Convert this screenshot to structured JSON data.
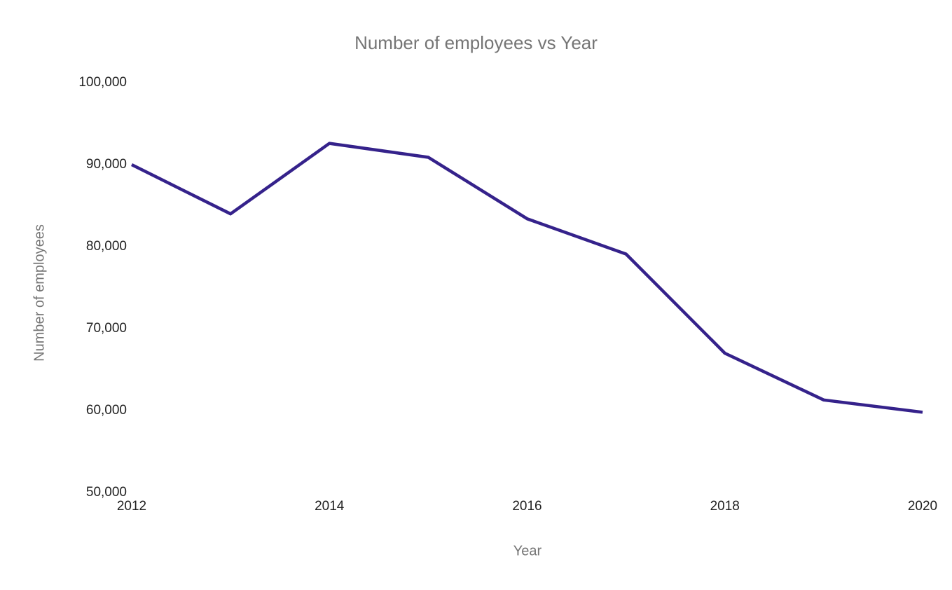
{
  "page": {
    "background_color": "#ffffff"
  },
  "chart_data": {
    "type": "line",
    "title": "Number of employees vs Year",
    "xlabel": "Year",
    "ylabel": "Number of employees",
    "x": [
      2012,
      2013,
      2014,
      2015,
      2016,
      2017,
      2018,
      2019,
      2020
    ],
    "series": [
      {
        "name": "Number of employees",
        "values": [
          90000,
          84000,
          92600,
          90900,
          83400,
          79100,
          67000,
          61300,
          59800
        ]
      }
    ],
    "xlim": [
      2012,
      2020
    ],
    "ylim": [
      50000,
      100000
    ],
    "x_ticks": [
      {
        "value": 2012,
        "label": "2012"
      },
      {
        "value": 2014,
        "label": "2014"
      },
      {
        "value": 2016,
        "label": "2016"
      },
      {
        "value": 2018,
        "label": "2018"
      },
      {
        "value": 2020,
        "label": "2020"
      }
    ],
    "y_ticks": [
      {
        "value": 50000,
        "label": "50,000"
      },
      {
        "value": 60000,
        "label": "60,000"
      },
      {
        "value": 70000,
        "label": "70,000"
      },
      {
        "value": 80000,
        "label": "80,000"
      },
      {
        "value": 90000,
        "label": "90,000"
      },
      {
        "value": 100000,
        "label": "100,000"
      }
    ],
    "grid": false,
    "legend_position": "none",
    "line_color": "#35228b",
    "line_width": 4.5,
    "title_color": "#757575",
    "axis_title_color": "#757575",
    "tick_label_color": "#212121"
  }
}
